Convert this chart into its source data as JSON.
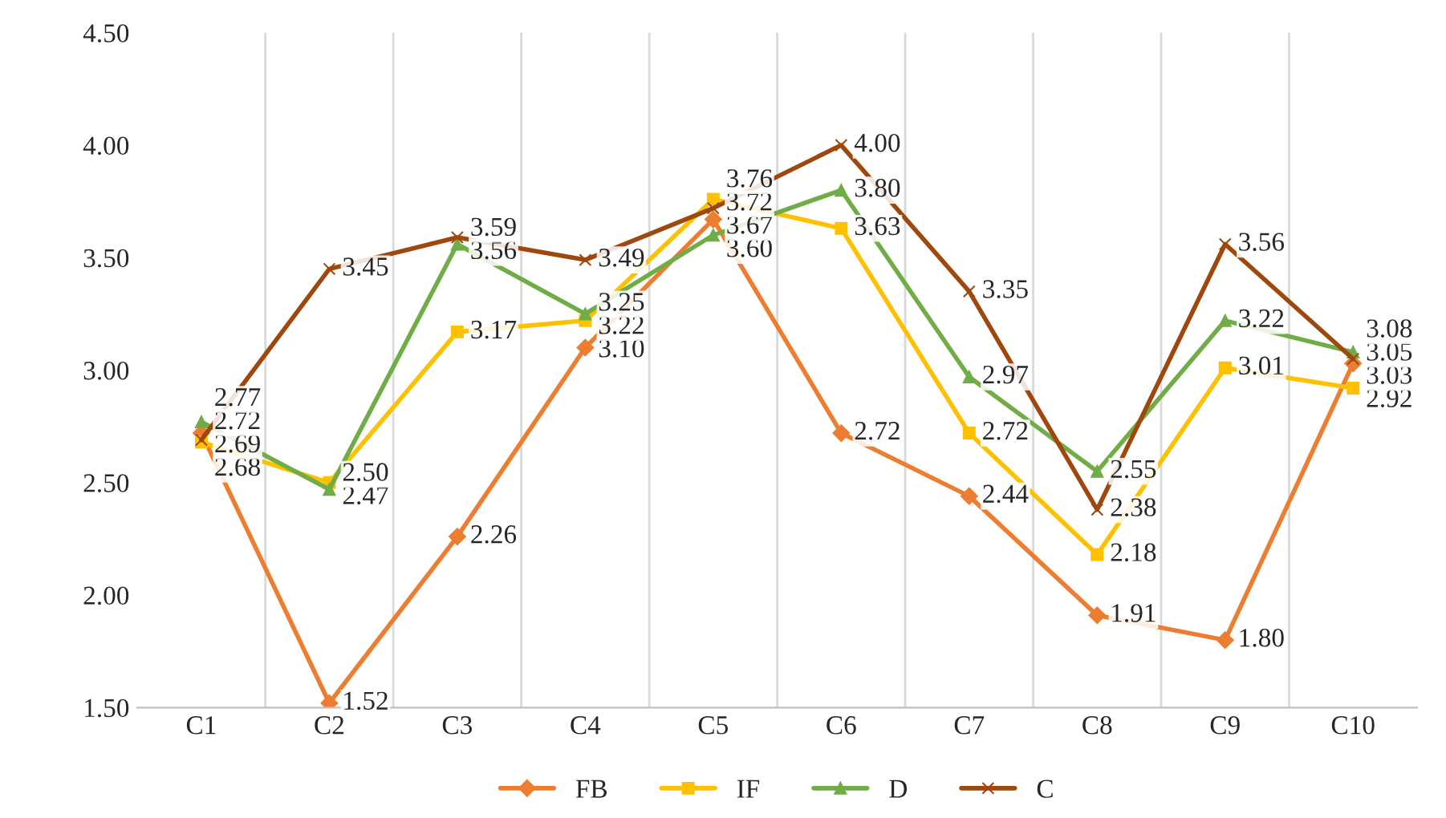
{
  "chart_data": {
    "type": "line",
    "categories": [
      "C1",
      "C2",
      "C3",
      "C4",
      "C5",
      "C6",
      "C7",
      "C8",
      "C9",
      "C10"
    ],
    "series": [
      {
        "name": "FB",
        "color": "#ed7d31",
        "marker": "diamond",
        "values": [
          2.72,
          1.52,
          2.26,
          3.1,
          3.67,
          2.72,
          2.44,
          1.91,
          1.8,
          3.03
        ],
        "value_labels": [
          "2.72",
          "1.52",
          "2.26",
          "3.10",
          "3.67",
          "2.72",
          "2.44",
          "1.91",
          "1.80",
          "3.03"
        ]
      },
      {
        "name": "IF",
        "color": "#ffc000",
        "marker": "square",
        "values": [
          2.68,
          2.5,
          3.17,
          3.22,
          3.76,
          3.63,
          2.72,
          2.18,
          3.01,
          2.92
        ],
        "value_labels": [
          "2.68",
          "2.50",
          "3.17",
          "3.22",
          "3.76",
          "3.63",
          "2.72",
          "2.18",
          "3.01",
          "2.92"
        ]
      },
      {
        "name": "D",
        "color": "#70ad47",
        "marker": "triangle",
        "values": [
          2.77,
          2.47,
          3.56,
          3.25,
          3.6,
          3.8,
          2.97,
          2.55,
          3.22,
          3.08
        ],
        "value_labels": [
          "2.77",
          "2.47",
          "3.56",
          "3.25",
          "3.60",
          "3.80",
          "2.97",
          "2.55",
          "3.22",
          "3.08"
        ]
      },
      {
        "name": "C",
        "color": "#9e480e",
        "marker": "cross",
        "values": [
          2.69,
          3.45,
          3.59,
          3.49,
          3.72,
          4.0,
          3.35,
          2.38,
          3.56,
          3.05
        ],
        "value_labels": [
          "2.69",
          "3.45",
          "3.59",
          "3.49",
          "3.72",
          "4.00",
          "3.35",
          "2.38",
          "3.56",
          "3.05"
        ]
      }
    ],
    "ylim": [
      1.5,
      4.5
    ],
    "yticks": [
      {
        "value": 1.5,
        "label": "1.50"
      },
      {
        "value": 2.0,
        "label": "2.00"
      },
      {
        "value": 2.5,
        "label": "2.50"
      },
      {
        "value": 3.0,
        "label": "3.00"
      },
      {
        "value": 3.5,
        "label": "3.50"
      },
      {
        "value": 4.0,
        "label": "4.00"
      },
      {
        "value": 4.5,
        "label": "4.50"
      }
    ],
    "grid": "x",
    "legend": "bottom",
    "line_style": "solid"
  }
}
